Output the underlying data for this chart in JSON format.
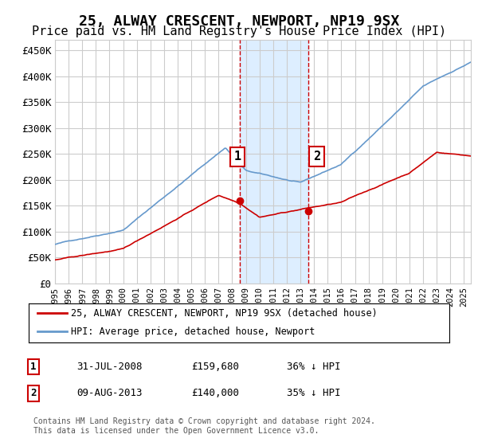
{
  "title": "25, ALWAY CRESCENT, NEWPORT, NP19 9SX",
  "subtitle": "Price paid vs. HM Land Registry's House Price Index (HPI)",
  "title_fontsize": 13,
  "subtitle_fontsize": 11,
  "ylim": [
    0,
    470000
  ],
  "yticks": [
    0,
    50000,
    100000,
    150000,
    200000,
    250000,
    300000,
    350000,
    400000,
    450000
  ],
  "ytick_labels": [
    "£0",
    "£50K",
    "£100K",
    "£150K",
    "£200K",
    "£250K",
    "£300K",
    "£350K",
    "£400K",
    "£450K"
  ],
  "hpi_color": "#6699cc",
  "price_color": "#cc0000",
  "grid_color": "#cccccc",
  "background_color": "#ffffff",
  "sale1_date_x": 2008.58,
  "sale1_price": 159680,
  "sale2_date_x": 2013.6,
  "sale2_price": 140000,
  "highlight_color": "#ddeeff",
  "dashed_color": "#cc0000",
  "legend_entries": [
    "25, ALWAY CRESCENT, NEWPORT, NP19 9SX (detached house)",
    "HPI: Average price, detached house, Newport"
  ],
  "annotation1_label": "1",
  "annotation2_label": "2",
  "table_row1": [
    "1",
    "31-JUL-2008",
    "£159,680",
    "36% ↓ HPI"
  ],
  "table_row2": [
    "2",
    "09-AUG-2013",
    "£140,000",
    "35% ↓ HPI"
  ],
  "footer": "Contains HM Land Registry data © Crown copyright and database right 2024.\nThis data is licensed under the Open Government Licence v3.0.",
  "xmin": 1995,
  "xmax": 2025.5
}
